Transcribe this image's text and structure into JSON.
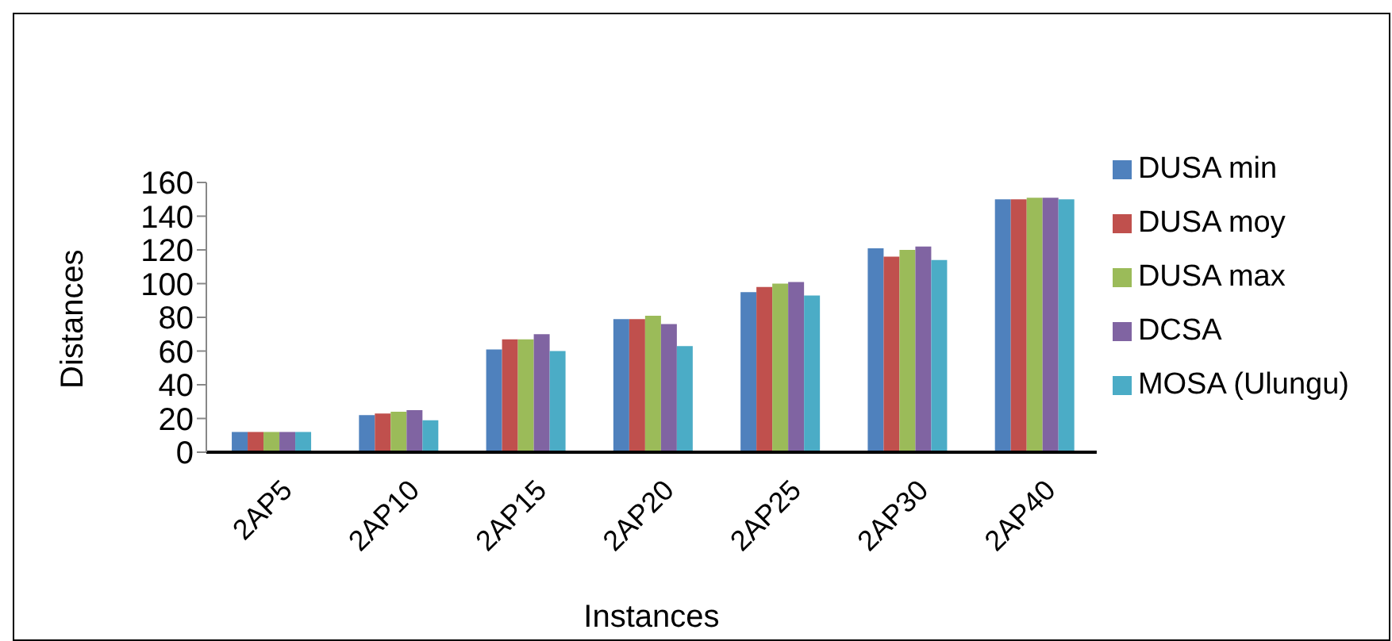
{
  "chart_data": {
    "type": "bar",
    "xlabel": "Instances",
    "ylabel": "Distances",
    "categories": [
      "2AP5",
      "2AP10",
      "2AP15",
      "2AP20",
      "2AP25",
      "2AP30",
      "2AP40"
    ],
    "series": [
      {
        "name": "DUSA min",
        "color": "#4f81bd",
        "values": [
          12,
          22,
          61,
          79,
          95,
          121,
          150
        ]
      },
      {
        "name": "DUSA moy",
        "color": "#c0504d",
        "values": [
          12,
          23,
          67,
          79,
          98,
          116,
          150
        ]
      },
      {
        "name": "DUSA max",
        "color": "#9bbb59",
        "values": [
          12,
          24,
          67,
          81,
          100,
          120,
          151
        ]
      },
      {
        "name": "DCSA",
        "color": "#8064a2",
        "values": [
          12,
          25,
          70,
          76,
          101,
          122,
          151
        ]
      },
      {
        "name": "MOSA (Ulungu)",
        "color": "#4bacc6",
        "values": [
          12,
          19,
          60,
          63,
          93,
          114,
          150
        ]
      }
    ],
    "ylim": [
      0,
      160
    ],
    "yticks": [
      0,
      20,
      40,
      60,
      80,
      100,
      120,
      140,
      160
    ],
    "grid": false,
    "legend": "right"
  }
}
